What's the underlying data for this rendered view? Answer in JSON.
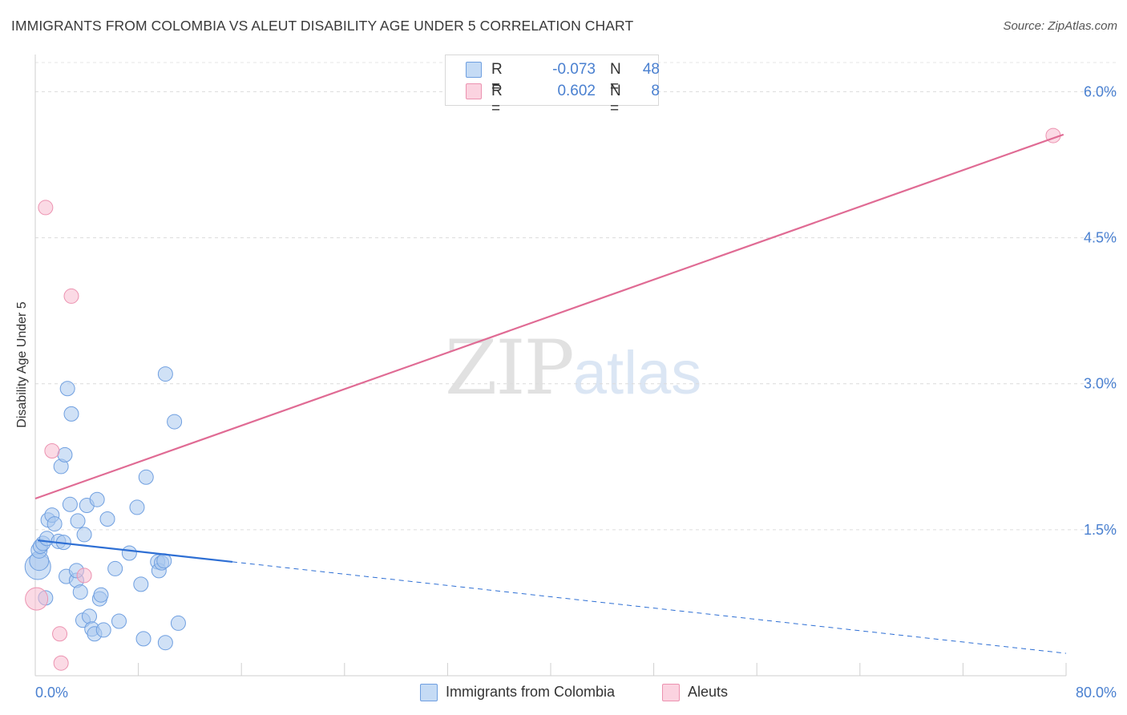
{
  "chart_data": {
    "type": "scatter",
    "title": "IMMIGRANTS FROM COLOMBIA VS ALEUT DISABILITY AGE UNDER 5 CORRELATION CHART",
    "source": "Source: ZipAtlas.com",
    "xlabel": "",
    "ylabel": "Disability Age Under 5",
    "xlim": [
      0,
      80
    ],
    "ylim": [
      0,
      6.3
    ],
    "x_tick_labels": [
      "0.0%",
      "80.0%"
    ],
    "y_ticks": [
      1.5,
      3.0,
      4.5,
      6.0
    ],
    "y_tick_labels": [
      "1.5%",
      "3.0%",
      "4.5%",
      "6.0%"
    ],
    "grid": true,
    "watermark": {
      "zip": "ZIP",
      "atlas": "atlas"
    },
    "legend": {
      "rows": [
        {
          "r_label": "R =",
          "r_value": "-0.073",
          "n_label": "N =",
          "n_value": "48",
          "color": "#aac8ef"
        },
        {
          "r_label": "R =",
          "r_value": "0.602",
          "n_label": "N =",
          "n_value": "8",
          "color": "#f8bcd0"
        }
      ]
    },
    "series": [
      {
        "name": "Immigrants from Colombia",
        "fill": "#aac8ef",
        "stroke": "#6f9fe0",
        "line_color": "#2e6fd4",
        "trend": {
          "x0": 0.2,
          "y0": 1.39,
          "x1": 15.3,
          "y1": 1.17,
          "dash_to_x": 80,
          "dash_to_y": 0.23
        },
        "points": [
          [
            0.2,
            1.12
          ],
          [
            0.3,
            1.18
          ],
          [
            0.3,
            1.29
          ],
          [
            0.4,
            1.33
          ],
          [
            0.6,
            1.36
          ],
          [
            0.9,
            1.41
          ],
          [
            0.8,
            0.8
          ],
          [
            1.0,
            1.6
          ],
          [
            1.3,
            1.65
          ],
          [
            1.5,
            1.56
          ],
          [
            1.8,
            1.38
          ],
          [
            2.2,
            1.37
          ],
          [
            2.0,
            2.15
          ],
          [
            2.4,
            1.02
          ],
          [
            2.3,
            2.27
          ],
          [
            2.5,
            2.95
          ],
          [
            2.7,
            1.76
          ],
          [
            2.8,
            2.69
          ],
          [
            3.2,
            0.98
          ],
          [
            3.2,
            1.08
          ],
          [
            3.3,
            1.59
          ],
          [
            3.5,
            0.86
          ],
          [
            3.7,
            0.57
          ],
          [
            3.8,
            1.45
          ],
          [
            4.0,
            1.75
          ],
          [
            4.2,
            0.61
          ],
          [
            4.4,
            0.48
          ],
          [
            4.6,
            0.43
          ],
          [
            4.8,
            1.81
          ],
          [
            5.0,
            0.79
          ],
          [
            5.1,
            0.83
          ],
          [
            5.3,
            0.47
          ],
          [
            5.6,
            1.61
          ],
          [
            6.2,
            1.1
          ],
          [
            6.5,
            0.56
          ],
          [
            7.3,
            1.26
          ],
          [
            7.9,
            1.73
          ],
          [
            8.2,
            0.94
          ],
          [
            8.4,
            0.38
          ],
          [
            8.6,
            2.04
          ],
          [
            9.5,
            1.17
          ],
          [
            9.6,
            1.08
          ],
          [
            9.8,
            1.16
          ],
          [
            10.1,
            0.34
          ],
          [
            10.1,
            3.1
          ],
          [
            10.8,
            2.61
          ],
          [
            11.1,
            0.54
          ],
          [
            10.0,
            1.18
          ]
        ],
        "sizes": [
          16,
          12,
          10,
          9,
          9,
          9,
          9,
          9,
          9,
          9,
          9,
          9,
          9,
          9,
          9,
          9,
          9,
          9,
          9,
          9,
          9,
          9,
          9,
          9,
          9,
          9,
          9,
          9,
          9,
          9,
          9,
          9,
          9,
          9,
          9,
          9,
          9,
          9,
          9,
          9,
          9,
          9,
          9,
          9,
          9,
          9,
          9,
          9
        ]
      },
      {
        "name": "Aleuts",
        "fill": "#f8bcd0",
        "stroke": "#ec92b0",
        "line_color": "#e06b94",
        "trend": {
          "x0": 0.0,
          "y0": 1.82,
          "x1": 79.8,
          "y1": 5.56
        },
        "points": [
          [
            0.1,
            0.79
          ],
          [
            0.8,
            4.81
          ],
          [
            1.3,
            2.31
          ],
          [
            1.9,
            0.43
          ],
          [
            2.0,
            0.13
          ],
          [
            2.8,
            3.9
          ],
          [
            3.8,
            1.03
          ],
          [
            79.0,
            5.55
          ]
        ],
        "sizes": [
          14,
          9,
          9,
          9,
          9,
          9,
          9,
          9
        ]
      }
    ]
  }
}
